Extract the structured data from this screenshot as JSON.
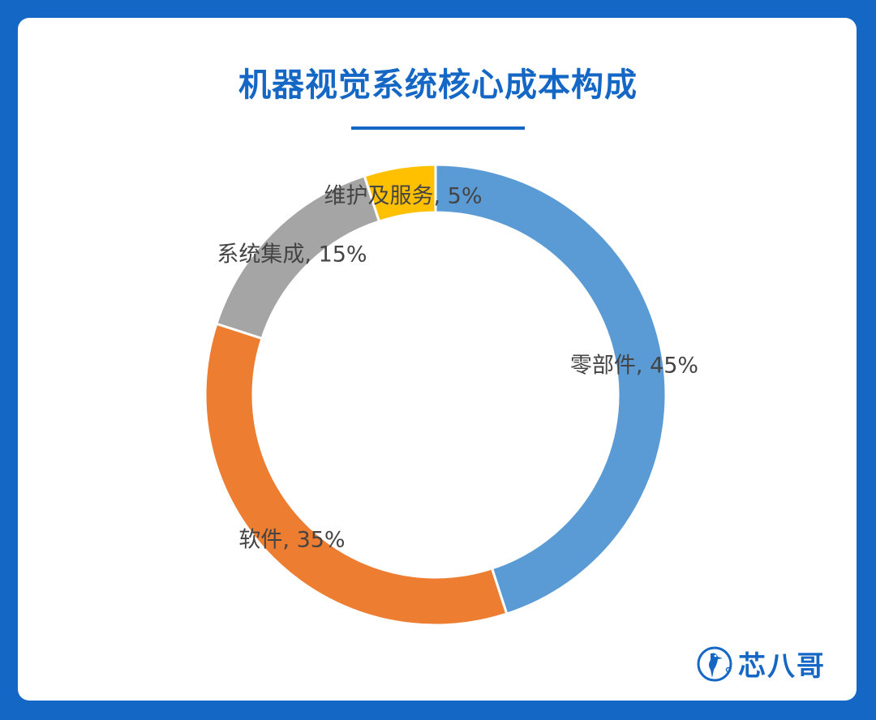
{
  "page": {
    "title": "机器视觉系统核心成本构成",
    "brand_text": "芯八哥"
  },
  "colors": {
    "background": "#1467c4",
    "accent": "#1467c4"
  },
  "chart_data": {
    "type": "pie",
    "style": "donut",
    "slices": [
      {
        "name": "零部件",
        "value": 45,
        "color": "#5b9bd5",
        "label": "零部件, 45%"
      },
      {
        "name": "软件",
        "value": 35,
        "color": "#ed7d31",
        "label": "软件, 35%"
      },
      {
        "name": "系统集成",
        "value": 15,
        "color": "#a5a5a5",
        "label": "系统集成, 15%"
      },
      {
        "name": "维护及服务",
        "value": 5,
        "color": "#ffc000",
        "label": "维护及服务, 5%"
      }
    ]
  }
}
